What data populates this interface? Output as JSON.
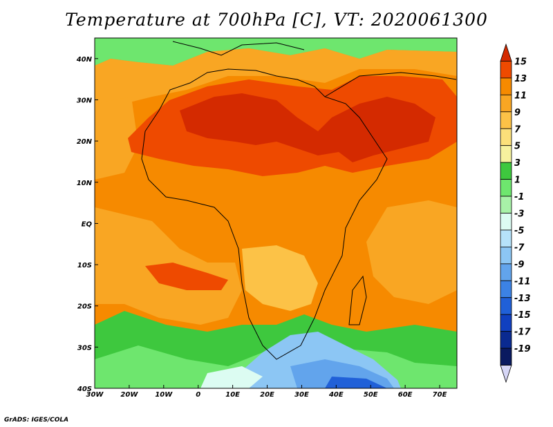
{
  "title": "Temperature at 700hPa [C], VT: 2020061300",
  "footer": "GrADS: IGES/COLA",
  "map": {
    "lon_range": [
      -30,
      75
    ],
    "lat_range": [
      -40,
      45
    ],
    "lon_ticks": [
      {
        "value": -30,
        "label": "30W"
      },
      {
        "value": -20,
        "label": "20W"
      },
      {
        "value": -10,
        "label": "10W"
      },
      {
        "value": 0,
        "label": "0"
      },
      {
        "value": 10,
        "label": "10E"
      },
      {
        "value": 20,
        "label": "20E"
      },
      {
        "value": 30,
        "label": "30E"
      },
      {
        "value": 40,
        "label": "40E"
      },
      {
        "value": 50,
        "label": "50E"
      },
      {
        "value": 60,
        "label": "60E"
      },
      {
        "value": 70,
        "label": "70E"
      }
    ],
    "lat_ticks": [
      {
        "value": 40,
        "label": "40N"
      },
      {
        "value": 30,
        "label": "30N"
      },
      {
        "value": 20,
        "label": "20N"
      },
      {
        "value": 10,
        "label": "10N"
      },
      {
        "value": 0,
        "label": "EQ"
      },
      {
        "value": -10,
        "label": "10S"
      },
      {
        "value": -20,
        "label": "20S"
      },
      {
        "value": -30,
        "label": "30S"
      },
      {
        "value": -40,
        "label": "40S"
      }
    ]
  },
  "colorbar": {
    "labels": [
      "15",
      "13",
      "11",
      "9",
      "7",
      "5",
      "3",
      "1",
      "-1",
      "-3",
      "-5",
      "-7",
      "-9",
      "-11",
      "-13",
      "-15",
      "-17",
      "-19"
    ],
    "colors": [
      "#d42a00",
      "#ee4a00",
      "#f68a00",
      "#f9a623",
      "#fcc247",
      "#fbe07a",
      "#f6f29e",
      "#3ec83e",
      "#6ee66e",
      "#a8f2a8",
      "#dcfcf2",
      "#b6e2fa",
      "#8cc6f4",
      "#62a4ec",
      "#3c82e4",
      "#2060d8",
      "#1040c0",
      "#0a2a90",
      "#0a1a60",
      "#d6d6f6"
    ]
  }
}
